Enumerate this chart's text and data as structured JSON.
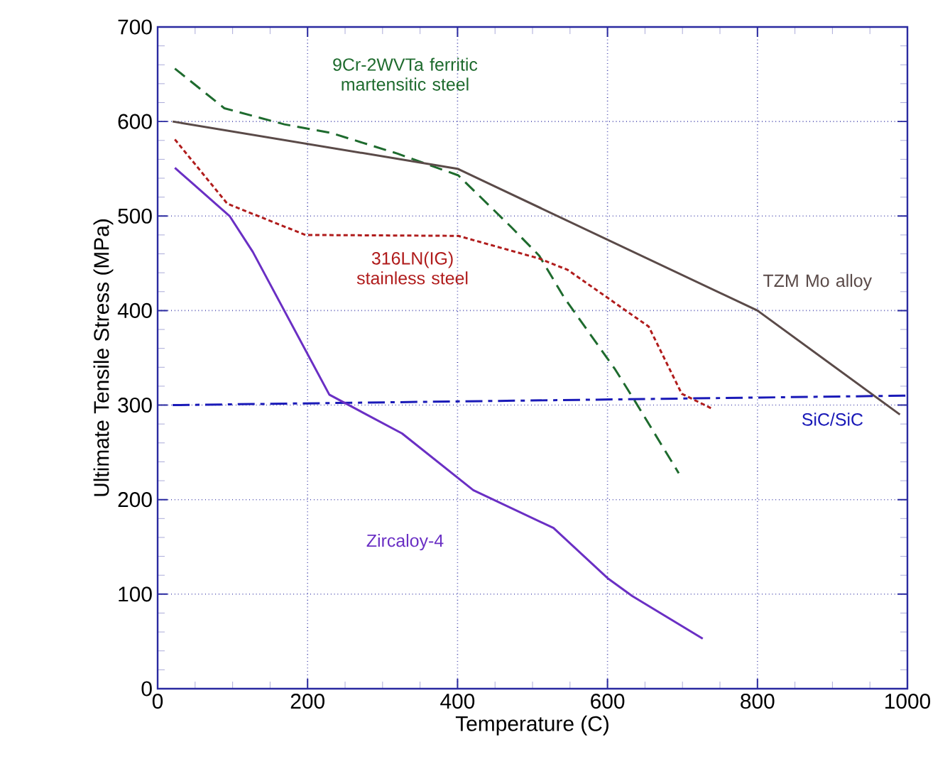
{
  "chart_data": {
    "type": "line",
    "xlabel": "Temperature (C)",
    "ylabel": "Ultimate Tensile Stress (MPa)",
    "xlim": [
      0,
      1000
    ],
    "ylim": [
      0,
      700
    ],
    "xticks": [
      0,
      200,
      400,
      600,
      800,
      1000
    ],
    "yticks": [
      0,
      100,
      200,
      300,
      400,
      500,
      600,
      700
    ],
    "grid": true,
    "legend": false,
    "series": [
      {
        "name": "9Cr-2WVTa ferritic martensitic steel",
        "color": "#1e6b2e",
        "line_style": "dashed",
        "x": [
          23,
          89,
          169,
          231,
          320,
          401,
          472,
          509,
          542,
          610,
          636,
          695
        ],
        "values": [
          656,
          614,
          597,
          588,
          566,
          543,
          488,
          458,
          414,
          338,
          305,
          228
        ]
      },
      {
        "name": "TZM Mo alloy",
        "color": "#5a4a48",
        "line_style": "solid",
        "x": [
          20,
          400,
          800,
          990
        ],
        "values": [
          600,
          550,
          400,
          290
        ]
      },
      {
        "name": "316LN(IG) stainless steel",
        "color": "#b01c1c",
        "line_style": "dotted",
        "x": [
          23,
          93,
          197,
          401,
          509,
          547,
          610,
          655,
          699,
          740
        ],
        "values": [
          581,
          513,
          480,
          479,
          455,
          443,
          408,
          383,
          312,
          296
        ]
      },
      {
        "name": "SiC/SiC",
        "color": "#1a1ab8",
        "line_style": "dashdot",
        "x": [
          20,
          1000
        ],
        "values": [
          300,
          310
        ]
      },
      {
        "name": "Zircaloy-4",
        "color": "#6a2fc4",
        "line_style": "solid",
        "x": [
          23,
          96,
          127,
          229,
          326,
          421,
          528,
          600,
          633,
          727
        ],
        "values": [
          551,
          500,
          462,
          311,
          270,
          210,
          170,
          117,
          98,
          53
        ]
      }
    ]
  }
}
